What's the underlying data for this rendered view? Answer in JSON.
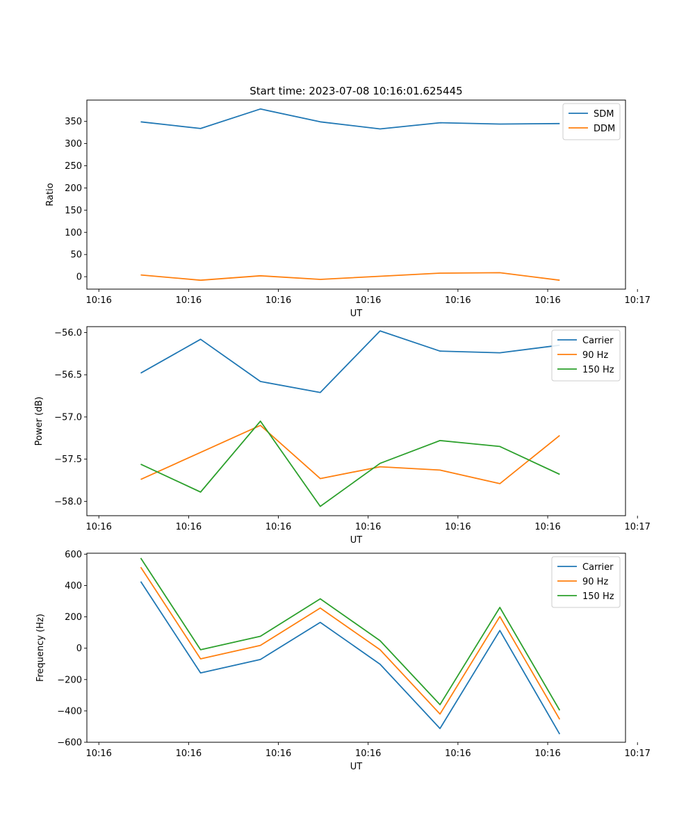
{
  "title": "Start time: 2023-07-08 10:16:01.625445",
  "chart_data": [
    {
      "type": "line",
      "title": "Start time: 2023-07-08 10:16:01.625445",
      "xlabel": "UT",
      "ylabel": "Ratio",
      "xlim": [
        -0.5,
        8.5
      ],
      "ylim": [
        -28,
        398
      ],
      "xticks": [
        -0.3,
        1.2,
        2.7,
        4.2,
        5.7,
        7.2,
        8.7
      ],
      "xtick_labels": [
        "10:16",
        "10:16",
        "10:16",
        "10:16",
        "10:16",
        "10:16",
        "10:17"
      ],
      "yticks": [
        0,
        50,
        100,
        150,
        200,
        250,
        300,
        350
      ],
      "ytick_labels": [
        "0",
        "50",
        "100",
        "150",
        "200",
        "250",
        "300",
        "350"
      ],
      "x": [
        0.4,
        1.4,
        2.4,
        3.4,
        4.4,
        5.4,
        6.4,
        7.4
      ],
      "series": [
        {
          "name": "SDM",
          "color": "#1f77b4",
          "values": [
            349,
            334,
            378,
            349,
            333,
            347,
            344,
            345
          ]
        },
        {
          "name": "DDM",
          "color": "#ff7f0e",
          "values": [
            4,
            -8,
            2,
            -6,
            1,
            8,
            9,
            -8
          ]
        }
      ],
      "legend": "top-right"
    },
    {
      "type": "line",
      "xlabel": "UT",
      "ylabel": "Power (dB)",
      "xlim": [
        -0.5,
        8.5
      ],
      "ylim": [
        -58.17,
        -55.93
      ],
      "xticks": [
        -0.3,
        1.2,
        2.7,
        4.2,
        5.7,
        7.2,
        8.7
      ],
      "xtick_labels": [
        "10:16",
        "10:16",
        "10:16",
        "10:16",
        "10:16",
        "10:16",
        "10:17"
      ],
      "yticks": [
        -58.0,
        -57.5,
        -57.0,
        -56.5,
        -56.0
      ],
      "ytick_labels": [
        "−58.0",
        "−57.5",
        "−57.0",
        "−56.5",
        "−56.0"
      ],
      "x": [
        0.4,
        1.4,
        2.4,
        3.4,
        4.4,
        5.4,
        6.4,
        7.4
      ],
      "series": [
        {
          "name": "Carrier",
          "color": "#1f77b4",
          "values": [
            -56.48,
            -56.08,
            -56.58,
            -56.71,
            -55.98,
            -56.22,
            -56.24,
            -56.15
          ]
        },
        {
          "name": "90 Hz",
          "color": "#ff7f0e",
          "values": [
            -57.74,
            -57.42,
            -57.1,
            -57.73,
            -57.59,
            -57.63,
            -57.79,
            -57.22
          ]
        },
        {
          "name": "150 Hz",
          "color": "#2ca02c",
          "values": [
            -57.56,
            -57.89,
            -57.05,
            -58.06,
            -57.55,
            -57.28,
            -57.35,
            -57.68
          ]
        }
      ],
      "legend": "top-right"
    },
    {
      "type": "line",
      "xlabel": "UT",
      "ylabel": "Frequency (Hz)",
      "xlim": [
        -0.5,
        8.5
      ],
      "ylim": [
        -600,
        606
      ],
      "xticks": [
        -0.3,
        1.2,
        2.7,
        4.2,
        5.7,
        7.2,
        8.7
      ],
      "xtick_labels": [
        "10:16",
        "10:16",
        "10:16",
        "10:16",
        "10:16",
        "10:16",
        "10:17"
      ],
      "yticks": [
        -600,
        -400,
        -200,
        0,
        200,
        400,
        600
      ],
      "ytick_labels": [
        "−600",
        "−400",
        "−200",
        "0",
        "200",
        "400",
        "600"
      ],
      "x": [
        0.4,
        1.4,
        2.4,
        3.4,
        4.4,
        5.4,
        6.4,
        7.4
      ],
      "series": [
        {
          "name": "Carrier",
          "color": "#1f77b4",
          "values": [
            425,
            -158,
            -72,
            165,
            -102,
            -512,
            113,
            -548
          ]
        },
        {
          "name": "90 Hz",
          "color": "#ff7f0e",
          "values": [
            517,
            -68,
            18,
            256,
            -10,
            -420,
            202,
            -454
          ]
        },
        {
          "name": "150 Hz",
          "color": "#2ca02c",
          "values": [
            575,
            -10,
            76,
            315,
            48,
            -360,
            260,
            -396
          ]
        }
      ],
      "legend": "top-right"
    }
  ]
}
